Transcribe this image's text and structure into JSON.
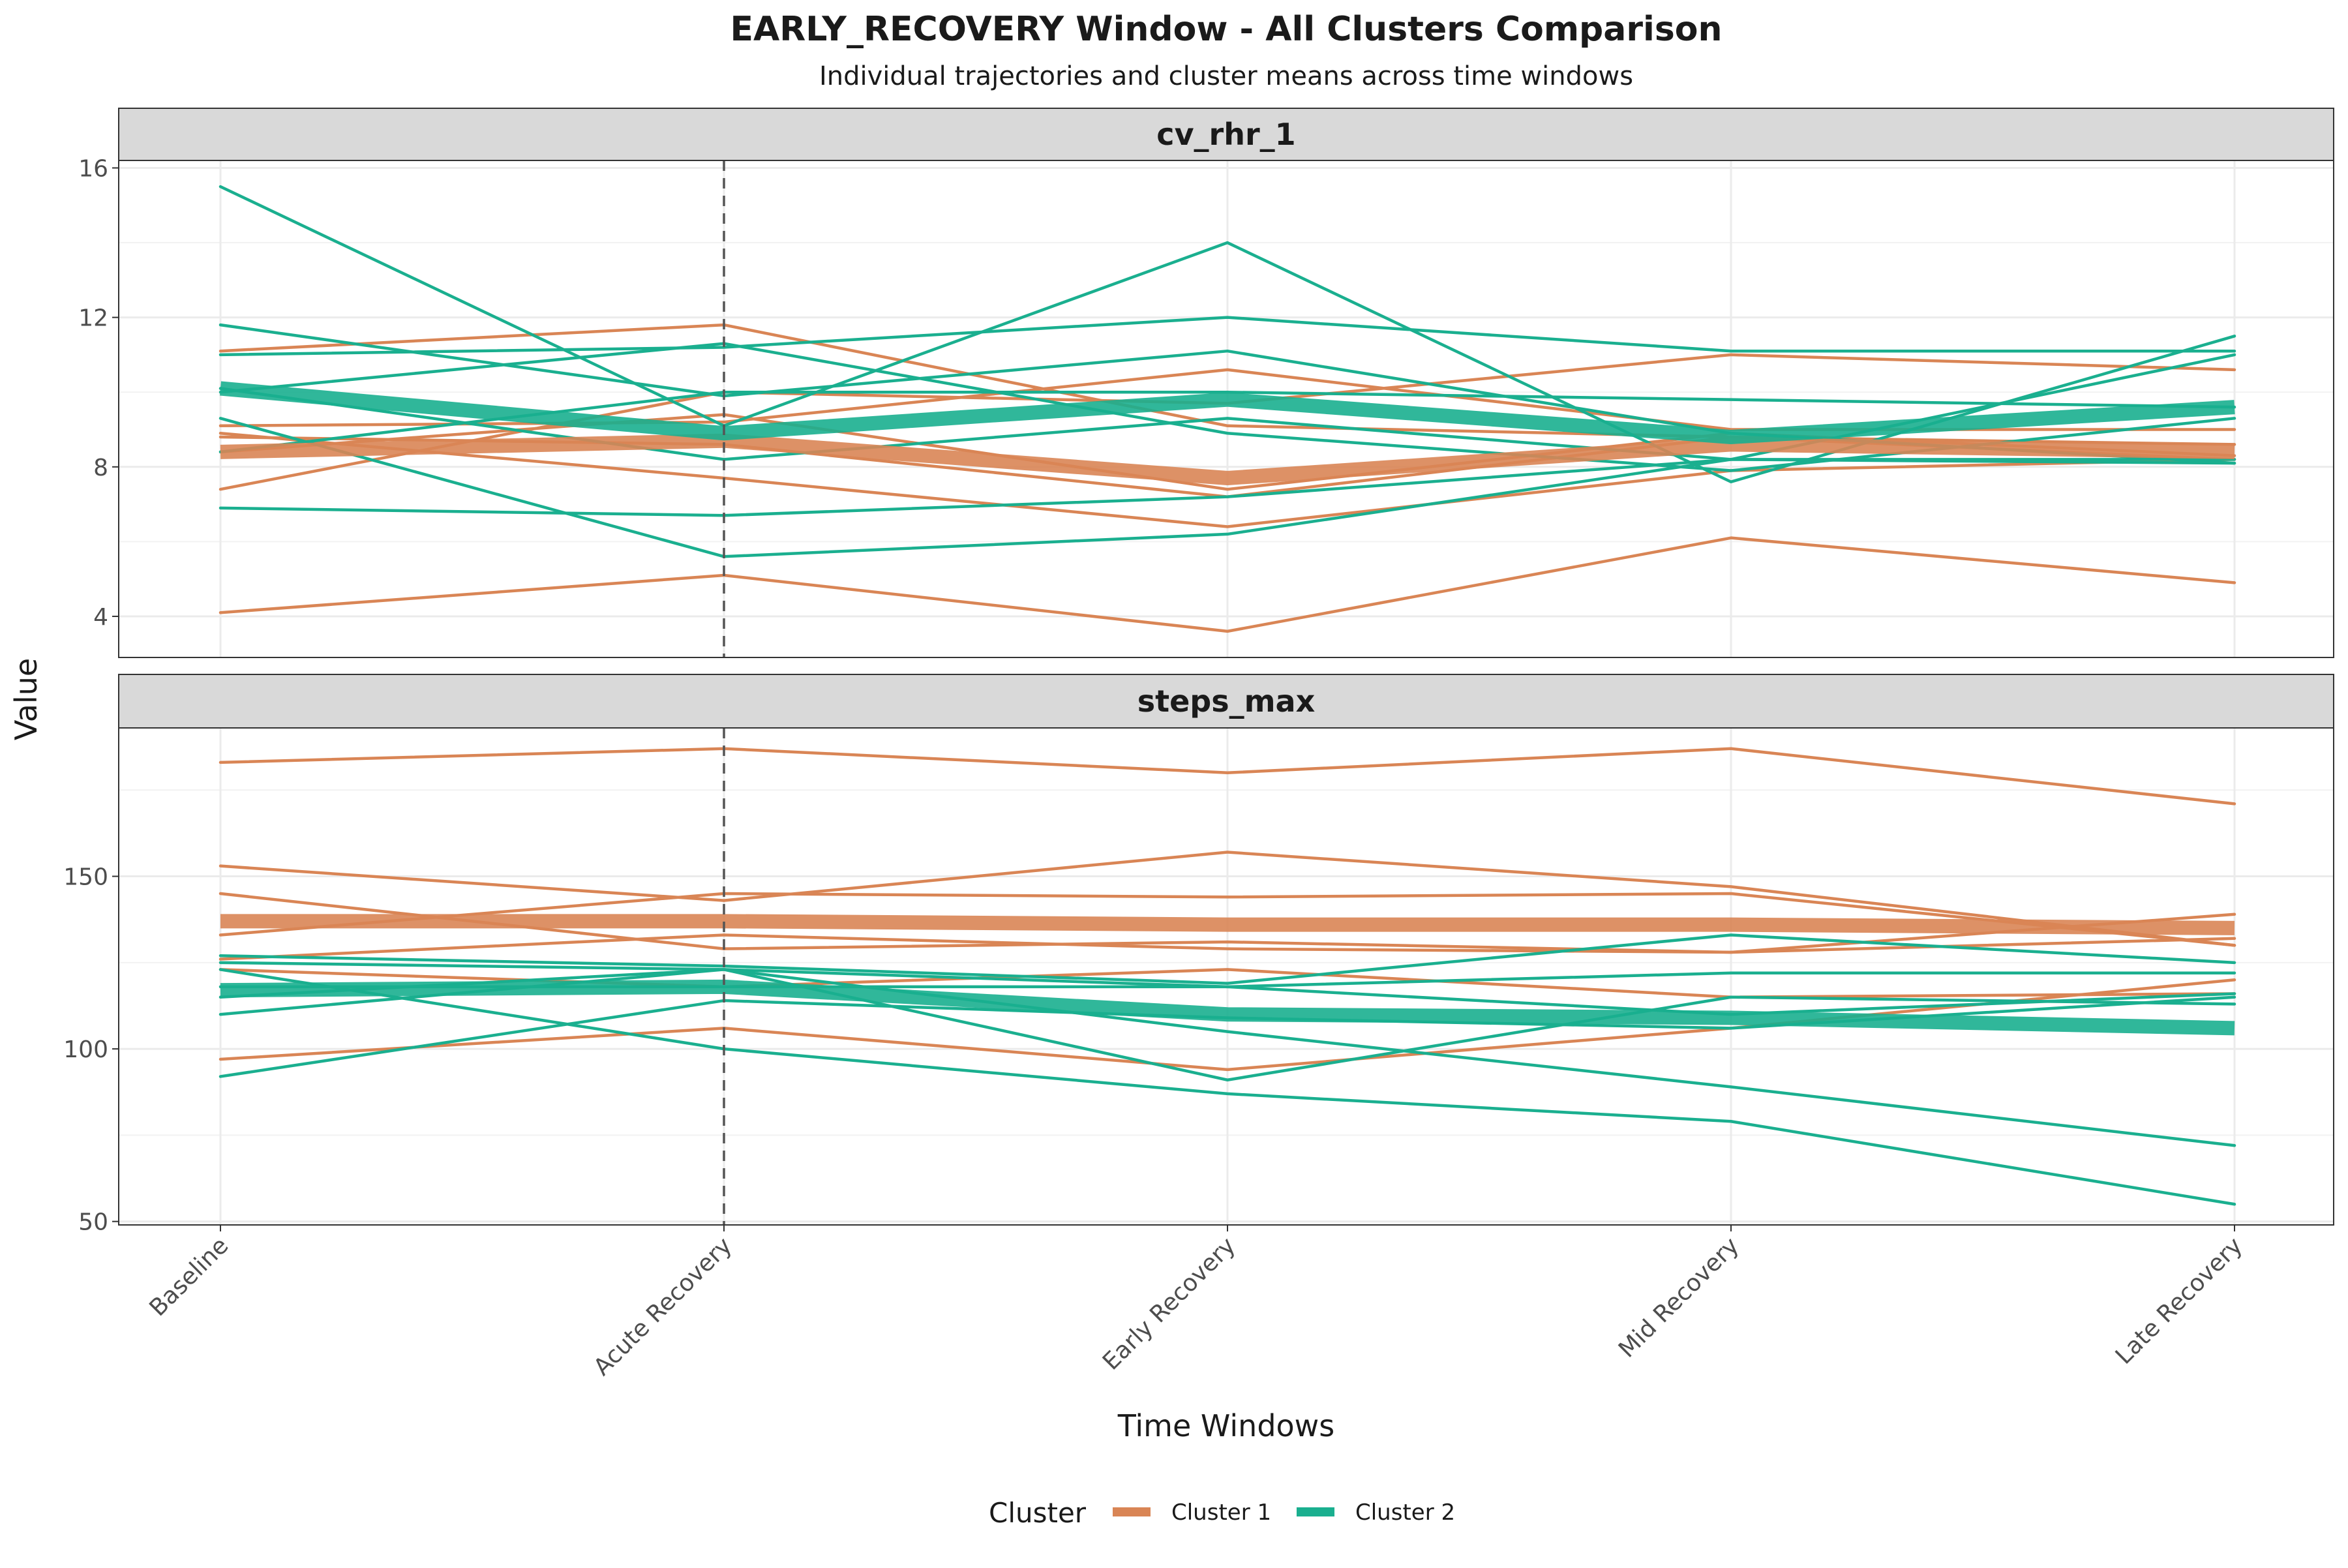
{
  "chart_data": {
    "type": "line",
    "title": "EARLY_RECOVERY Window - All Clusters Comparison",
    "subtitle": "Individual trajectories and cluster means across time windows",
    "xlabel": "Time Windows",
    "ylabel": "Value",
    "categories": [
      "Baseline",
      "Acute Recovery",
      "Early Recovery",
      "Mid Recovery",
      "Late Recovery"
    ],
    "highlight_category": "Acute Recovery",
    "grid": true,
    "legend": {
      "title": "Cluster",
      "position": "bottom",
      "entries": [
        {
          "name": "Cluster 1",
          "color": "#D98555"
        },
        {
          "name": "Cluster 2",
          "color": "#1AAF8F"
        }
      ]
    },
    "colors": {
      "Cluster 1": "#D98555",
      "Cluster 2": "#1AAF8F"
    },
    "panels": [
      {
        "name": "cv_rhr_1",
        "ylim": [
          2.9,
          16.2
        ],
        "yticks": [
          4,
          8,
          12,
          16
        ],
        "yticklabels": [
          "4",
          "8",
          "12",
          "16"
        ],
        "series": [
          {
            "cluster": "Cluster 1",
            "values": [
              4.1,
              5.1,
              3.6,
              6.1,
              4.9
            ]
          },
          {
            "cluster": "Cluster 1",
            "values": [
              7.4,
              10.0,
              9.7,
              11.0,
              10.6
            ]
          },
          {
            "cluster": "Cluster 1",
            "values": [
              11.1,
              11.8,
              9.1,
              8.8,
              8.6
            ]
          },
          {
            "cluster": "Cluster 1",
            "values": [
              9.1,
              9.2,
              10.6,
              9.0,
              9.0
            ]
          },
          {
            "cluster": "Cluster 1",
            "values": [
              8.9,
              7.7,
              6.4,
              7.9,
              8.2
            ]
          },
          {
            "cluster": "Cluster 1",
            "values": [
              8.8,
              8.6,
              7.2,
              8.8,
              8.2
            ]
          },
          {
            "cluster": "Cluster 1",
            "values": [
              8.4,
              9.4,
              7.4,
              8.9,
              8.3
            ]
          },
          {
            "cluster": "Cluster 2",
            "values": [
              15.5,
              9.1,
              14.0,
              7.6,
              11.5
            ]
          },
          {
            "cluster": "Cluster 2",
            "values": [
              11.8,
              9.9,
              11.1,
              8.9,
              8.1
            ]
          },
          {
            "cluster": "Cluster 2",
            "values": [
              11.0,
              11.2,
              12.0,
              11.1,
              11.1
            ]
          },
          {
            "cluster": "Cluster 2",
            "values": [
              9.3,
              5.6,
              6.2,
              8.2,
              8.2
            ]
          },
          {
            "cluster": "Cluster 2",
            "values": [
              6.9,
              6.7,
              7.2,
              8.2,
              8.1
            ]
          },
          {
            "cluster": "Cluster 2",
            "values": [
              8.4,
              10.0,
              10.0,
              9.8,
              9.6
            ]
          },
          {
            "cluster": "Cluster 2",
            "values": [
              10.0,
              11.3,
              8.9,
              7.9,
              9.3
            ]
          },
          {
            "cluster": "Cluster 2",
            "values": [
              10.1,
              8.2,
              9.3,
              8.2,
              11.0
            ]
          }
        ],
        "means": [
          {
            "cluster": "Cluster 1",
            "values": [
              8.4,
              8.7,
              7.7,
              8.6,
              8.4
            ]
          },
          {
            "cluster": "Cluster 2",
            "values": [
              10.1,
              8.9,
              9.8,
              8.8,
              9.6
            ]
          }
        ]
      },
      {
        "name": "steps_max",
        "ylim": [
          49,
          193
        ],
        "yticks": [
          50,
          100,
          150
        ],
        "yticklabels": [
          "50",
          "100",
          "150"
        ],
        "series": [
          {
            "cluster": "Cluster 1",
            "values": [
              183,
              187,
              180,
              187,
              171
            ]
          },
          {
            "cluster": "Cluster 1",
            "values": [
              153,
              143,
              157,
              147,
              130
            ]
          },
          {
            "cluster": "Cluster 1",
            "values": [
              145,
              129,
              131,
              128,
              139
            ]
          },
          {
            "cluster": "Cluster 1",
            "values": [
              133,
              145,
              144,
              145,
              130
            ]
          },
          {
            "cluster": "Cluster 1",
            "values": [
              126,
              133,
              129,
              128,
              132
            ]
          },
          {
            "cluster": "Cluster 1",
            "values": [
              123,
              118,
              123,
              115,
              116
            ]
          },
          {
            "cluster": "Cluster 1",
            "values": [
              97,
              106,
              94,
              106,
              120
            ]
          },
          {
            "cluster": "Cluster 2",
            "values": [
              127,
              124,
              119,
              133,
              125
            ]
          },
          {
            "cluster": "Cluster 2",
            "values": [
              125,
              123,
              118,
              122,
              122
            ]
          },
          {
            "cluster": "Cluster 2",
            "values": [
              123,
              100,
              87,
              79,
              55
            ]
          },
          {
            "cluster": "Cluster 2",
            "values": [
              110,
              123,
              105,
              89,
              72
            ]
          },
          {
            "cluster": "Cluster 2",
            "values": [
              92,
              114,
              109,
              106,
              115
            ]
          },
          {
            "cluster": "Cluster 2",
            "values": [
              115,
              123,
              91,
              115,
              113
            ]
          },
          {
            "cluster": "Cluster 2",
            "values": [
              118,
              118,
              118,
              110,
              116
            ]
          }
        ],
        "means": [
          {
            "cluster": "Cluster 1",
            "values": [
              137,
              137,
              136,
              136,
              135
            ]
          },
          {
            "cluster": "Cluster 2",
            "values": [
              117,
              118,
              110,
              109,
              106
            ]
          }
        ]
      }
    ]
  }
}
